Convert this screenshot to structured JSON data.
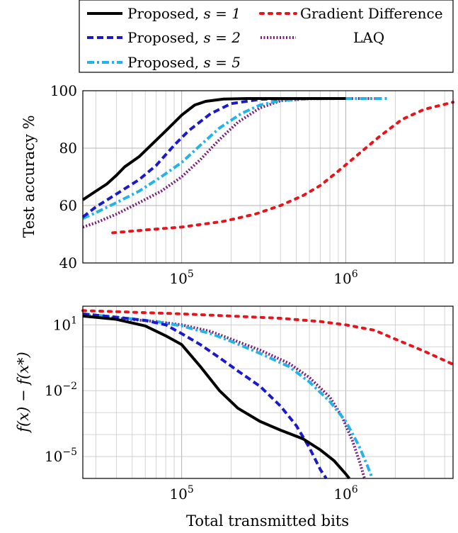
{
  "chart_data": [
    {
      "type": "line",
      "panel": "top",
      "xlabel": "",
      "ylabel": "Test accuracy %",
      "xscale": "log",
      "xlim": [
        25000,
        4500000
      ],
      "ylim": [
        40,
        100
      ],
      "yticks": [
        40,
        60,
        80,
        100
      ],
      "xticks": [
        {
          "value": 100000,
          "base": "10",
          "exp": "5"
        },
        {
          "value": 1000000,
          "base": "10",
          "exp": "6"
        }
      ],
      "grid": true,
      "series": [
        {
          "name": "s1",
          "color": "#000000",
          "dash": "solid",
          "points": [
            [
              25000,
              62
            ],
            [
              30000,
              65
            ],
            [
              35000,
              67.5
            ],
            [
              40000,
              70.5
            ],
            [
              45000,
              73.5
            ],
            [
              55000,
              77
            ],
            [
              65000,
              81
            ],
            [
              80000,
              86
            ],
            [
              100000,
              91.5
            ],
            [
              120000,
              95
            ],
            [
              140000,
              96.3
            ],
            [
              180000,
              97.1
            ],
            [
              250000,
              97.3
            ],
            [
              400000,
              97.3
            ],
            [
              600000,
              97.3
            ],
            [
              1000000,
              97.3
            ]
          ]
        },
        {
          "name": "s2",
          "color": "#1a1acc",
          "dash": "dashed",
          "points": [
            [
              25000,
              56
            ],
            [
              30000,
              59.5
            ],
            [
              40000,
              64
            ],
            [
              55000,
              69
            ],
            [
              70000,
              74
            ],
            [
              90000,
              81
            ],
            [
              110000,
              86
            ],
            [
              150000,
              92
            ],
            [
              200000,
              95.5
            ],
            [
              300000,
              97
            ],
            [
              500000,
              97.3
            ],
            [
              1000000,
              97.3
            ]
          ]
        },
        {
          "name": "s5",
          "color": "#22b4e8",
          "dash": "dashdot",
          "points": [
            [
              25000,
              55.5
            ],
            [
              30000,
              57.5
            ],
            [
              40000,
              61
            ],
            [
              55000,
              65
            ],
            [
              75000,
              70
            ],
            [
              100000,
              75
            ],
            [
              130000,
              81
            ],
            [
              170000,
              87
            ],
            [
              230000,
              92
            ],
            [
              300000,
              95
            ],
            [
              400000,
              96.6
            ],
            [
              600000,
              97.2
            ],
            [
              1000000,
              97.3
            ],
            [
              1800000,
              97.3
            ]
          ]
        },
        {
          "name": "gd",
          "color": "#e8141a",
          "dash": "dotted",
          "points": [
            [
              38000,
              50.5
            ],
            [
              60000,
              51.5
            ],
            [
              100000,
              52.5
            ],
            [
              180000,
              54.5
            ],
            [
              280000,
              57
            ],
            [
              400000,
              60
            ],
            [
              550000,
              63.5
            ],
            [
              700000,
              67
            ],
            [
              900000,
              72
            ],
            [
              1200000,
              78
            ],
            [
              1600000,
              84
            ],
            [
              2200000,
              90
            ],
            [
              3000000,
              93.5
            ],
            [
              4500000,
              96
            ]
          ]
        },
        {
          "name": "laq",
          "color": "#7a1a7a",
          "dash": "densedot",
          "points": [
            [
              25000,
              52.5
            ],
            [
              30000,
              54
            ],
            [
              40000,
              57
            ],
            [
              55000,
              61
            ],
            [
              75000,
              65
            ],
            [
              100000,
              70
            ],
            [
              130000,
              76
            ],
            [
              170000,
              83
            ],
            [
              220000,
              89
            ],
            [
              300000,
              94
            ],
            [
              400000,
              96.5
            ],
            [
              600000,
              97.2
            ],
            [
              1000000,
              97.3
            ],
            [
              1500000,
              97.3
            ]
          ]
        }
      ]
    },
    {
      "type": "line",
      "panel": "bottom",
      "xlabel": "Total transmitted bits",
      "ylabel": "f(x) − f(x*)",
      "xscale": "log",
      "yscale": "log",
      "xlim": [
        25000,
        4500000
      ],
      "ylim_log10": [
        -6,
        1.85
      ],
      "yticks": [
        {
          "log10": 1,
          "base": "10",
          "exp": "1"
        },
        {
          "log10": -2,
          "base": "10",
          "exp": "−2"
        },
        {
          "log10": -5,
          "base": "10",
          "exp": "−5"
        }
      ],
      "xticks": [
        {
          "value": 100000,
          "base": "10",
          "exp": "5"
        },
        {
          "value": 1000000,
          "base": "10",
          "exp": "6"
        }
      ],
      "grid": true,
      "series": [
        {
          "name": "s1",
          "color": "#000000",
          "dash": "solid",
          "points_log10y": [
            [
              25000,
              1.4
            ],
            [
              40000,
              1.25
            ],
            [
              60000,
              0.95
            ],
            [
              80000,
              0.5
            ],
            [
              100000,
              0.1
            ],
            [
              130000,
              -0.9
            ],
            [
              170000,
              -2
            ],
            [
              220000,
              -2.8
            ],
            [
              300000,
              -3.4
            ],
            [
              400000,
              -3.8
            ],
            [
              550000,
              -4.2
            ],
            [
              700000,
              -4.7
            ],
            [
              850000,
              -5.2
            ],
            [
              1000000,
              -5.8
            ],
            [
              1050000,
              -6
            ]
          ]
        },
        {
          "name": "s2",
          "color": "#1a1acc",
          "dash": "dashed",
          "points_log10y": [
            [
              25000,
              1.5
            ],
            [
              40000,
              1.35
            ],
            [
              60000,
              1.2
            ],
            [
              80000,
              1.0
            ],
            [
              100000,
              0.6
            ],
            [
              130000,
              0.1
            ],
            [
              170000,
              -0.5
            ],
            [
              220000,
              -1.1
            ],
            [
              300000,
              -1.8
            ],
            [
              400000,
              -2.7
            ],
            [
              500000,
              -3.6
            ],
            [
              600000,
              -4.6
            ],
            [
              700000,
              -5.6
            ],
            [
              760000,
              -6
            ]
          ]
        },
        {
          "name": "s5",
          "color": "#22b4e8",
          "dash": "dashdot",
          "points_log10y": [
            [
              25000,
              1.5
            ],
            [
              40000,
              1.35
            ],
            [
              70000,
              1.15
            ],
            [
              100000,
              0.95
            ],
            [
              150000,
              0.6
            ],
            [
              200000,
              0.25
            ],
            [
              300000,
              -0.3
            ],
            [
              450000,
              -0.9
            ],
            [
              600000,
              -1.6
            ],
            [
              800000,
              -2.5
            ],
            [
              1000000,
              -3.4
            ],
            [
              1200000,
              -4.5
            ],
            [
              1350000,
              -5.4
            ],
            [
              1450000,
              -6
            ]
          ]
        },
        {
          "name": "gd",
          "color": "#e8141a",
          "dash": "dotted",
          "points_log10y": [
            [
              25000,
              1.65
            ],
            [
              40000,
              1.6
            ],
            [
              100000,
              1.5
            ],
            [
              200000,
              1.4
            ],
            [
              400000,
              1.3
            ],
            [
              700000,
              1.15
            ],
            [
              1000000,
              1.0
            ],
            [
              1500000,
              0.75
            ],
            [
              2000000,
              0.35
            ],
            [
              3000000,
              -0.2
            ],
            [
              4500000,
              -0.8
            ]
          ]
        },
        {
          "name": "laq",
          "color": "#7a1a7a",
          "dash": "densedot",
          "points_log10y": [
            [
              25000,
              1.45
            ],
            [
              40000,
              1.3
            ],
            [
              70000,
              1.15
            ],
            [
              100000,
              1.0
            ],
            [
              150000,
              0.7
            ],
            [
              200000,
              0.35
            ],
            [
              300000,
              -0.15
            ],
            [
              450000,
              -0.75
            ],
            [
              600000,
              -1.4
            ],
            [
              800000,
              -2.3
            ],
            [
              950000,
              -3.2
            ],
            [
              1100000,
              -4.3
            ],
            [
              1220000,
              -5.3
            ],
            [
              1300000,
              -6
            ]
          ]
        }
      ]
    }
  ],
  "legend": {
    "placement": "top",
    "items": [
      {
        "key": "s1",
        "text": "Proposed, ",
        "math": "s = 1"
      },
      {
        "key": "gd",
        "text": "Gradient Difference",
        "math": ""
      },
      {
        "key": "s2",
        "text": "Proposed, ",
        "math": "s = 2"
      },
      {
        "key": "laq",
        "text": "LAQ",
        "math": ""
      },
      {
        "key": "s5",
        "text": "Proposed, ",
        "math": "s = 5"
      }
    ]
  }
}
